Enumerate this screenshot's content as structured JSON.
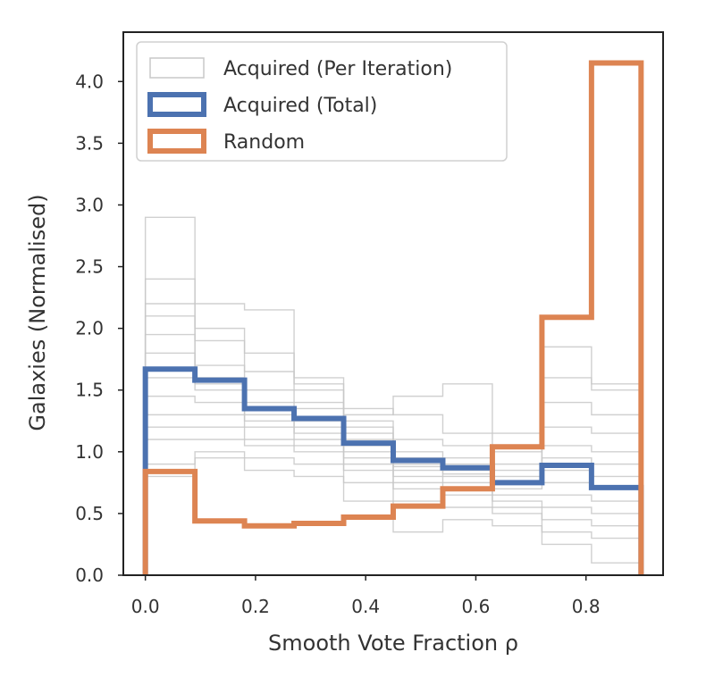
{
  "chart_data": {
    "type": "histogram-step",
    "xlabel": "Smooth Vote Fraction ρ",
    "ylabel": "Galaxies (Normalised)",
    "xlim": [
      -0.04,
      0.94
    ],
    "ylim": [
      0.0,
      4.4
    ],
    "bin_edges": [
      0.0,
      0.09,
      0.18,
      0.27,
      0.36,
      0.45,
      0.54,
      0.63,
      0.72,
      0.81,
      0.9
    ],
    "x_ticks": [
      {
        "value": 0.0,
        "label": "0.0"
      },
      {
        "value": 0.2,
        "label": "0.2"
      },
      {
        "value": 0.4,
        "label": "0.4"
      },
      {
        "value": 0.6,
        "label": "0.6"
      },
      {
        "value": 0.8,
        "label": "0.8"
      }
    ],
    "y_ticks": [
      {
        "value": 0.0,
        "label": "0.0"
      },
      {
        "value": 0.5,
        "label": "0.5"
      },
      {
        "value": 1.0,
        "label": "1.0"
      },
      {
        "value": 1.5,
        "label": "1.5"
      },
      {
        "value": 2.0,
        "label": "2.0"
      },
      {
        "value": 2.5,
        "label": "2.5"
      },
      {
        "value": 3.0,
        "label": "3.0"
      },
      {
        "value": 3.5,
        "label": "3.5"
      },
      {
        "value": 4.0,
        "label": "4.0"
      }
    ],
    "legend_position": "top-left",
    "series": [
      {
        "name": "Acquired (Per Iteration)",
        "color": "#c8c8c8",
        "per_iteration": true,
        "values": [
          2.9,
          2.2,
          2.15,
          1.55,
          1.3,
          1.45,
          1.55,
          1.15,
          1.85,
          1.5
        ]
      },
      {
        "name": "Acquired (Per Iteration)",
        "color": "#c8c8c8",
        "per_iteration": true,
        "values": [
          2.4,
          2.0,
          1.8,
          1.6,
          1.35,
          1.3,
          1.15,
          1.05,
          1.6,
          1.55
        ]
      },
      {
        "name": "Acquired (Per Iteration)",
        "color": "#c8c8c8",
        "per_iteration": true,
        "values": [
          2.2,
          1.9,
          1.65,
          1.5,
          1.25,
          1.1,
          1.05,
          1.0,
          1.4,
          1.3
        ]
      },
      {
        "name": "Acquired (Per Iteration)",
        "color": "#c8c8c8",
        "per_iteration": true,
        "values": [
          2.1,
          1.7,
          1.5,
          1.4,
          1.2,
          1.0,
          0.95,
          0.9,
          1.2,
          1.15
        ]
      },
      {
        "name": "Acquired (Per Iteration)",
        "color": "#c8c8c8",
        "per_iteration": true,
        "values": [
          1.95,
          1.6,
          1.4,
          1.35,
          1.15,
          0.95,
          0.9,
          0.85,
          1.05,
          1.0
        ]
      },
      {
        "name": "Acquired (Per Iteration)",
        "color": "#c8c8c8",
        "per_iteration": true,
        "values": [
          1.8,
          1.55,
          1.35,
          1.25,
          1.1,
          0.9,
          0.85,
          0.8,
          0.95,
          0.9
        ]
      },
      {
        "name": "Acquired (Per Iteration)",
        "color": "#c8c8c8",
        "per_iteration": true,
        "values": [
          1.6,
          1.5,
          1.3,
          1.2,
          1.05,
          0.88,
          0.82,
          0.75,
          0.85,
          0.8
        ]
      },
      {
        "name": "Acquired (Per Iteration)",
        "color": "#c8c8c8",
        "per_iteration": true,
        "values": [
          1.45,
          1.4,
          1.25,
          1.15,
          1.0,
          0.85,
          0.8,
          0.7,
          0.75,
          0.7
        ]
      },
      {
        "name": "Acquired (Per Iteration)",
        "color": "#c8c8c8",
        "per_iteration": true,
        "values": [
          1.3,
          1.3,
          1.2,
          1.1,
          0.95,
          0.8,
          0.75,
          0.65,
          0.65,
          0.6
        ]
      },
      {
        "name": "Acquired (Per Iteration)",
        "color": "#c8c8c8",
        "per_iteration": true,
        "values": [
          1.2,
          1.2,
          1.1,
          1.05,
          0.9,
          0.75,
          0.7,
          0.6,
          0.55,
          0.5
        ]
      },
      {
        "name": "Acquired (Per Iteration)",
        "color": "#c8c8c8",
        "per_iteration": true,
        "values": [
          1.1,
          1.1,
          1.05,
          1.0,
          0.85,
          0.7,
          0.65,
          0.55,
          0.45,
          0.4
        ]
      },
      {
        "name": "Acquired (Per Iteration)",
        "color": "#c8c8c8",
        "per_iteration": true,
        "values": [
          0.9,
          1.0,
          0.95,
          0.9,
          0.75,
          0.6,
          0.55,
          0.5,
          0.35,
          0.3
        ]
      },
      {
        "name": "Acquired (Per Iteration)",
        "color": "#c8c8c8",
        "per_iteration": true,
        "values": [
          0.8,
          0.95,
          0.85,
          0.8,
          0.6,
          0.35,
          0.45,
          0.4,
          0.25,
          0.1
        ]
      },
      {
        "name": "Acquired (Total)",
        "color": "#4c72b0",
        "values": [
          1.67,
          1.58,
          1.35,
          1.27,
          1.07,
          0.93,
          0.87,
          0.75,
          0.89,
          0.71
        ]
      },
      {
        "name": "Random",
        "color": "#dd8452",
        "values": [
          0.84,
          0.44,
          0.4,
          0.42,
          0.47,
          0.56,
          0.7,
          1.04,
          2.09,
          4.15
        ]
      }
    ]
  },
  "legend": [
    {
      "label": "Acquired (Per Iteration)",
      "color": "#c8c8c8"
    },
    {
      "label": "Acquired (Total)",
      "color": "#4c72b0"
    },
    {
      "label": "Random",
      "color": "#dd8452"
    }
  ]
}
